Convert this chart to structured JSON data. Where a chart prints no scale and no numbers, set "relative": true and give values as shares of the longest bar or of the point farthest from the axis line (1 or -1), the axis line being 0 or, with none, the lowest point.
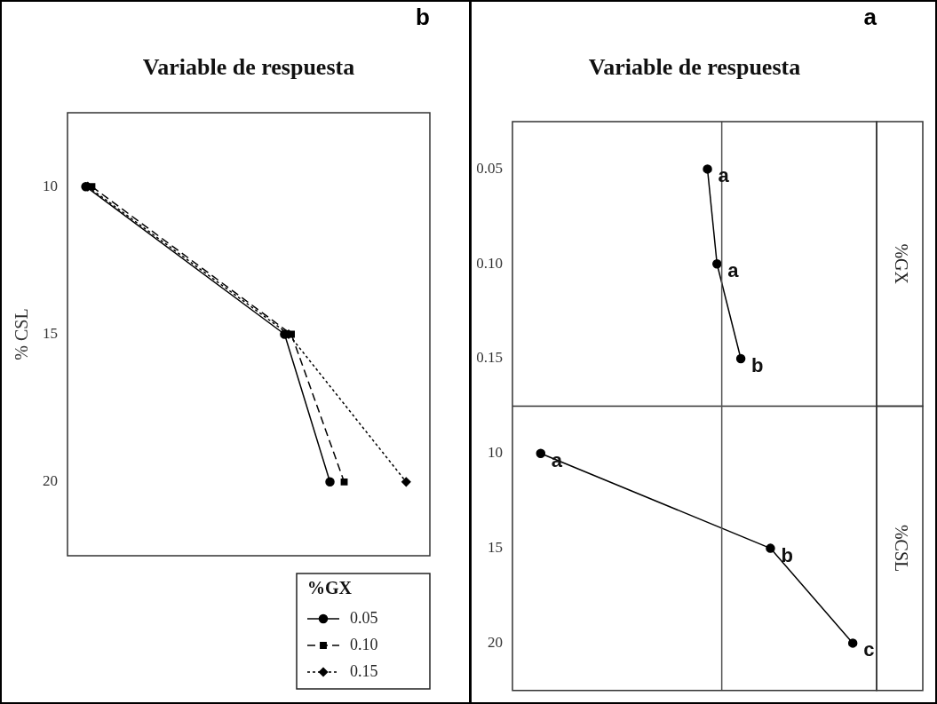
{
  "chart_data": [
    {
      "type": "line",
      "orientation": "horizontal",
      "title": "a",
      "xlabel": "Variable de respuesta",
      "relative": true,
      "marker": "circle",
      "line_style": "solid",
      "categories": [
        "0.05",
        "0.10",
        "0.15",
        "10",
        "15",
        "20"
      ],
      "series": [
        {
          "color": "#000000",
          "values": [
            0.573,
            0.601,
            0.671,
            null,
            null,
            null
          ]
        },
        {
          "color": "#000000",
          "values": [
            null,
            null,
            null,
            0.083,
            0.758,
            1
          ]
        }
      ],
      "ref_lines": [
        {
          "axis": "x",
          "value": 0.615,
          "color": "#555555"
        }
      ],
      "annotations": [
        "%GX",
        "%CSL",
        {
          "text": "a",
          "x": 0.573,
          "y": "0.05"
        },
        {
          "text": "a",
          "x": 0.601,
          "y": "0.10"
        },
        {
          "text": "b",
          "x": 0.671,
          "y": "0.15"
        },
        {
          "text": "a",
          "x": 0.083,
          "y": "10"
        },
        {
          "text": "b",
          "x": 0.758,
          "y": "15"
        },
        {
          "text": "c",
          "x": 1,
          "y": "20"
        }
      ]
    },
    {
      "type": "line",
      "orientation": "horizontal",
      "title": "b",
      "xlabel": "Variable de respuesta",
      "ylabel": "% CSL",
      "relative": true,
      "legend": "bottom right",
      "legend_title": "%GX",
      "categories": [
        "10",
        "15",
        "20"
      ],
      "series": [
        {
          "name": "0.05",
          "color": "#000000",
          "marker": "circle",
          "line_style": "solid",
          "values": [
            0.054,
            0.641,
            0.775
          ]
        },
        {
          "name": "0.10",
          "color": "#000000",
          "marker": "square",
          "line_style": "dashed",
          "values": [
            0.072,
            0.661,
            0.817
          ]
        },
        {
          "name": "0.15",
          "color": "#000000",
          "marker": "diamond",
          "line_style": "dotted",
          "values": [
            0.06,
            0.653,
            1
          ]
        }
      ]
    }
  ]
}
